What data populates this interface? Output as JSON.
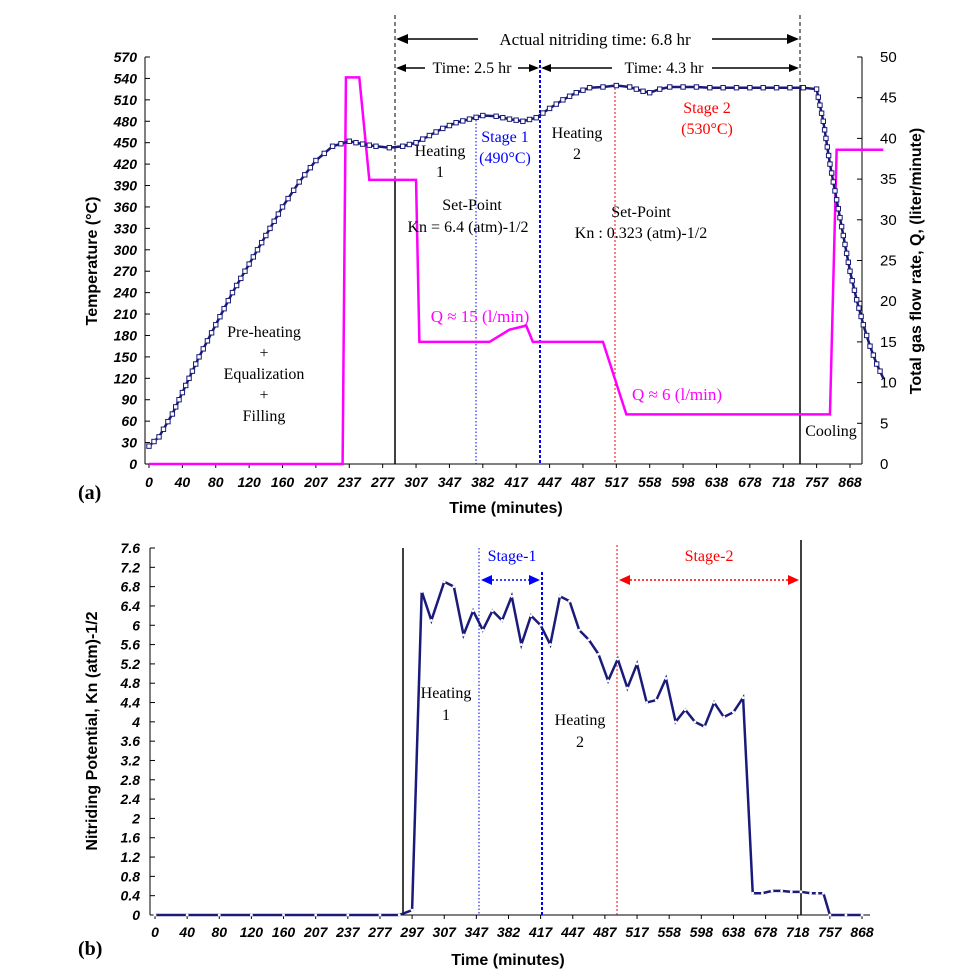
{
  "chart_data": [
    {
      "panel_label": "(a)",
      "type": "line",
      "xlabel": "Time (minutes)",
      "ylabel": "Temperature (°C)",
      "y2label": "Total gas flow rate, Q, (liter/minute)",
      "x_tick_labels": [
        "0",
        "40",
        "80",
        "120",
        "160",
        "207",
        "237",
        "277",
        "307",
        "347",
        "382",
        "417",
        "447",
        "487",
        "517",
        "558",
        "598",
        "638",
        "678",
        "718",
        "757",
        "868"
      ],
      "ylim": [
        0,
        570
      ],
      "yticks": [
        "0",
        "30",
        "60",
        "90",
        "120",
        "150",
        "180",
        "210",
        "240",
        "270",
        "300",
        "330",
        "360",
        "390",
        "420",
        "450",
        "480",
        "510",
        "540",
        "570"
      ],
      "y2lim": [
        0,
        50
      ],
      "y2ticks": [
        "0",
        "5",
        "10",
        "15",
        "20",
        "25",
        "30",
        "35",
        "40",
        "45",
        "50"
      ],
      "grid": false,
      "series": [
        {
          "axis": "left",
          "color": "#1a1a7a",
          "marker": "square",
          "x_index": [
            0,
            0.3,
            0.7,
            1.1,
            1.5,
            2,
            2.5,
            3,
            3.5,
            4,
            4.5,
            5,
            5.5,
            6,
            6.4,
            6.8,
            7.2,
            7.6,
            8,
            8.4,
            8.8,
            9.2,
            9.6,
            10,
            10.4,
            10.8,
            11.2,
            11.6,
            12,
            12.4,
            12.8,
            13.2,
            13.6,
            14,
            14.4,
            14.8,
            15,
            15.3,
            15.6,
            16,
            16.4,
            16.8,
            17.2,
            17.6,
            18,
            18.4,
            18.8,
            19.2,
            19.6,
            20,
            20.2,
            20.4,
            20.6,
            20.8,
            21,
            21.2,
            21.4,
            21.6,
            21.8,
            22
          ],
          "values": [
            25,
            38,
            70,
            110,
            150,
            195,
            240,
            280,
            320,
            360,
            395,
            425,
            445,
            452,
            448,
            445,
            443,
            445,
            450,
            460,
            470,
            478,
            483,
            488,
            487,
            483,
            480,
            485,
            498,
            510,
            520,
            527,
            528,
            530,
            528,
            522,
            520,
            525,
            528,
            528,
            528,
            527,
            527,
            527,
            527,
            527,
            527,
            527,
            527,
            525,
            480,
            420,
            370,
            320,
            270,
            230,
            195,
            165,
            140,
            120
          ]
        },
        {
          "axis": "right",
          "color": "#ff00ff",
          "x_index": [
            0,
            5.8,
            5.9,
            6.3,
            6.6,
            7.2,
            7.3,
            8,
            8.1,
            10.2,
            10.8,
            11.3,
            11.5,
            12,
            13.6,
            14.3,
            20.4,
            20.6,
            22
          ],
          "values": [
            0,
            0,
            47.5,
            47.5,
            34.9,
            34.9,
            34.9,
            34.9,
            15,
            15,
            16.5,
            17,
            15,
            15,
            15,
            6.1,
            6.1,
            38.6,
            38.6
          ]
        }
      ],
      "annotations": [
        {
          "text": "Actual nitriding time: 6.8 hr",
          "color": "#000000"
        },
        {
          "text": "Time: 2.5 hr",
          "color": "#000000"
        },
        {
          "text": "Time: 4.3 hr",
          "color": "#000000"
        },
        {
          "text": "Stage 1",
          "color": "#0000ff"
        },
        {
          "text": "(490°C)",
          "color": "#0000ff"
        },
        {
          "text": "Stage 2",
          "color": "#ff0000"
        },
        {
          "text": "(530°C)",
          "color": "#ff0000"
        },
        {
          "text": "Heating",
          "color": "#000000"
        },
        {
          "text": "1",
          "color": "#000000"
        },
        {
          "text": "Heating",
          "color": "#000000"
        },
        {
          "text": "2",
          "color": "#000000"
        },
        {
          "text": "Set-Point",
          "color": "#000000"
        },
        {
          "text": "Kn = 6.4 (atm)-1/2",
          "color": "#000000"
        },
        {
          "text": "Set-Point",
          "color": "#000000"
        },
        {
          "text": "Kn : 0.323 (atm)-1/2",
          "color": "#000000"
        },
        {
          "text": "Q ≈ 15 (l/min)",
          "color": "#ff00ff"
        },
        {
          "text": "Q ≈ 6 (l/min)",
          "color": "#ff00ff"
        },
        {
          "text": "Pre-heating",
          "color": "#000000"
        },
        {
          "text": "+",
          "color": "#000000"
        },
        {
          "text": "Equalization",
          "color": "#000000"
        },
        {
          "text": "+",
          "color": "#000000"
        },
        {
          "text": "Filling",
          "color": "#000000"
        },
        {
          "text": "Cooling",
          "color": "#000000"
        }
      ]
    },
    {
      "panel_label": "(b)",
      "type": "line",
      "xlabel": "Time (minutes)",
      "ylabel": "Nitriding Potential, Kn (atm)-1/2",
      "x_tick_labels": [
        "0",
        "40",
        "80",
        "120",
        "160",
        "207",
        "237",
        "277",
        "297",
        "307",
        "347",
        "382",
        "417",
        "447",
        "487",
        "517",
        "558",
        "598",
        "638",
        "678",
        "718",
        "757",
        "868"
      ],
      "ylim": [
        0,
        7.6
      ],
      "yticks": [
        "0",
        "0.4",
        "0.8",
        "1.2",
        "1.6",
        "2",
        "2.4",
        "2.8",
        "3.2",
        "3.6",
        "4",
        "4.4",
        "4.8",
        "5.2",
        "5.6",
        "6",
        "6.4",
        "6.8",
        "7.2",
        "7.6"
      ],
      "grid": false,
      "series": [
        {
          "color": "#1a1a7a",
          "x_index": [
            0,
            1,
            2,
            3,
            4,
            5,
            6,
            7,
            7.6,
            8,
            8.3,
            8.6,
            9.0,
            9.3,
            9.6,
            9.9,
            10.2,
            10.5,
            10.8,
            11.1,
            11.4,
            11.7,
            12,
            12.3,
            12.6,
            12.9,
            13.2,
            13.5,
            13.8,
            14.1,
            14.4,
            14.7,
            15.0,
            15.3,
            15.6,
            15.9,
            16.2,
            16.5,
            16.8,
            17.1,
            17.4,
            17.7,
            18,
            18.3,
            18.6,
            18.9,
            19.2,
            19.5,
            19.8,
            20.1,
            20.4,
            20.6,
            20.8,
            21,
            21.5,
            22
          ],
          "values": [
            0,
            0,
            0,
            0,
            0,
            0,
            0,
            0,
            0,
            0.1,
            6.7,
            6.1,
            6.9,
            6.8,
            5.8,
            6.3,
            5.9,
            6.3,
            6.1,
            6.6,
            5.6,
            6.2,
            6.0,
            5.6,
            6.6,
            6.5,
            5.9,
            5.7,
            5.4,
            4.85,
            5.3,
            4.7,
            5.2,
            4.4,
            4.45,
            4.9,
            4.0,
            4.25,
            4.0,
            3.9,
            4.4,
            4.1,
            4.2,
            4.5,
            0.45,
            0.45,
            0.5,
            0.5,
            0.48,
            0.48,
            0.45,
            0.45,
            0.45,
            0,
            0,
            0
          ]
        }
      ],
      "annotations": [
        {
          "text": "Stage-1",
          "color": "#0000ff"
        },
        {
          "text": "Stage-2",
          "color": "#ff0000"
        },
        {
          "text": "Heating",
          "color": "#000000"
        },
        {
          "text": "1",
          "color": "#000000"
        },
        {
          "text": "Heating",
          "color": "#000000"
        },
        {
          "text": "2",
          "color": "#000000"
        }
      ]
    }
  ]
}
